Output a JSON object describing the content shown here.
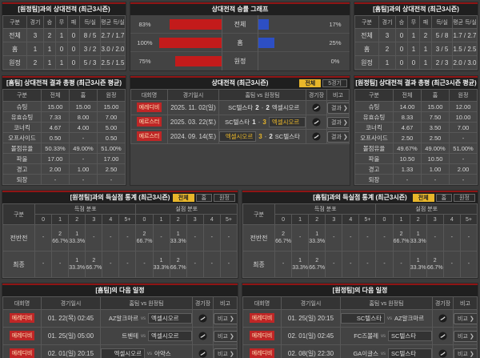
{
  "colors": {
    "red_bar": "#c31b1b",
    "blue_bar": "#2d4fc4",
    "accent_yellow": "#e8b62a",
    "badge_red": "#bf2626",
    "header_line_red": "#8f1515"
  },
  "h2h_vs_away": {
    "title": "[원정팀]과의 상대전적 (최근3시즌)",
    "cols": [
      "구분",
      "경기",
      "승",
      "무",
      "패",
      "득/실",
      "평균 득/실"
    ],
    "rows": [
      [
        "전체",
        "3",
        "2",
        "1",
        "0",
        "8 / 5",
        "2.7 / 1.7"
      ],
      [
        "홈",
        "1",
        "1",
        "0",
        "0",
        "3 / 2",
        "3.0 / 2.0"
      ],
      [
        "원정",
        "2",
        "1",
        "1",
        "0",
        "5 / 3",
        "2.5 / 1.5"
      ]
    ]
  },
  "h2h_vs_home": {
    "title": "[홈팀]과의 상대전적 (최근3시즌)",
    "cols": [
      "구분",
      "경기",
      "승",
      "무",
      "패",
      "득/실",
      "평균 득/실"
    ],
    "rows": [
      [
        "전체",
        "3",
        "0",
        "1",
        "2",
        "5 / 8",
        "1.7 / 2.7"
      ],
      [
        "홈",
        "2",
        "0",
        "1",
        "1",
        "3 / 5",
        "1.5 / 2.5"
      ],
      [
        "원정",
        "1",
        "0",
        "0",
        "1",
        "2 / 3",
        "2.0 / 3.0"
      ]
    ]
  },
  "chart_data": {
    "type": "bar",
    "title": "상대전적 승률 그래프",
    "categories": [
      "전체",
      "홈",
      "원정"
    ],
    "series": [
      {
        "name": "홈팀 승률(적색)",
        "values": [
          83,
          100,
          75
        ]
      },
      {
        "name": "원정팀 승률(청색)",
        "values": [
          17,
          25,
          0
        ]
      }
    ],
    "unit": "%",
    "xlim": [
      0,
      100
    ],
    "legend_position": "none",
    "grid": false
  },
  "winrate": {
    "title": "상대전적 승률 그래프",
    "rows": [
      {
        "lp": "83%",
        "label": "전체",
        "rp": "17%",
        "lv": 83,
        "rv": 17
      },
      {
        "lp": "100%",
        "label": "홈",
        "rp": "25%",
        "lv": 100,
        "rv": 25
      },
      {
        "lp": "75%",
        "label": "원정",
        "rp": "0%",
        "lv": 75,
        "rv": 0
      }
    ]
  },
  "summary_home": {
    "title": "[홈팀] 상대전적 결과 총평 (최근3시즌 평균)",
    "cols": [
      "구분",
      "전체",
      "홈",
      "원정"
    ],
    "rows": [
      [
        "슈팅",
        "15.00",
        "15.00",
        "15.00"
      ],
      [
        "유효슈팅",
        "7.33",
        "8.00",
        "7.00"
      ],
      [
        "코너킥",
        "4.67",
        "4.00",
        "5.00"
      ],
      [
        "오프사이드",
        "0.50",
        "-",
        "0.50"
      ],
      [
        "볼점유율",
        "50.33%",
        "49.00%",
        "51.00%"
      ],
      [
        "파울",
        "17.00",
        "-",
        "17.00"
      ],
      [
        "경고",
        "2.00",
        "1.00",
        "2.50"
      ],
      [
        "퇴장",
        "-",
        "-",
        "-"
      ]
    ]
  },
  "summary_away": {
    "title": "[원정팀] 상대전적 결과 총평 (최근3시즌 평균)",
    "cols": [
      "구분",
      "전체",
      "홈",
      "원정"
    ],
    "rows": [
      [
        "슈팅",
        "14.00",
        "15.00",
        "12.00"
      ],
      [
        "유효슈팅",
        "8.33",
        "7.50",
        "10.00"
      ],
      [
        "코너킥",
        "4.67",
        "3.50",
        "7.00"
      ],
      [
        "오프사이드",
        "2.50",
        "2.50",
        "-"
      ],
      [
        "볼점유율",
        "49.67%",
        "49.00%",
        "51.00%"
      ],
      [
        "파울",
        "10.50",
        "10.50",
        "-"
      ],
      [
        "경고",
        "1.33",
        "1.00",
        "2.00"
      ],
      [
        "퇴장",
        "-",
        "-",
        "-"
      ]
    ]
  },
  "matches": {
    "title": "상대전적 (최근3시즌)",
    "tabs": [
      "전체",
      "5경기"
    ],
    "sep": "-",
    "cols": [
      "대회명",
      "경기일시",
      "홈팀 vs 원정팀",
      "경기장",
      "비고"
    ],
    "rows": [
      {
        "league": "에레디비",
        "dt": "2025. 11. 02(일)",
        "home": "SC텔스타",
        "hs": "2",
        "as": "2",
        "away": "엑셀시오르",
        "note": "결과 ❯"
      },
      {
        "league": "에르스터",
        "dt": "2025. 03. 22(토)",
        "home": "SC텔스타",
        "hs": "1",
        "as": "3",
        "away": "엑셀시오르",
        "note": "결과 ❯"
      },
      {
        "league": "에르스터",
        "dt": "2024. 09. 14(토)",
        "home": "엑셀시오르",
        "hs": "3",
        "as": "2",
        "away": "SC텔스타",
        "note": "결과 ❯"
      }
    ]
  },
  "dist_vs_away": {
    "title": "[원정팀]과의 득실점 통계 (최근3시즌)",
    "tabs": [
      "전체",
      "홈",
      "원정"
    ],
    "col_label": "구분",
    "group1": "득점 분포",
    "group2": "실점 분포",
    "nums": [
      "0",
      "1",
      "2",
      "3",
      "4",
      "5+"
    ],
    "rows": [
      {
        "label": "전반전",
        "scored": [
          "-",
          "2\n66.7%",
          "1\n33.3%",
          "-",
          "-",
          "-"
        ],
        "conceded": [
          "2\n66.7%",
          "-",
          "1\n33.3%",
          "-",
          "-",
          "-"
        ]
      },
      {
        "label": "최종",
        "scored": [
          "-",
          "-",
          "1\n33.3%",
          "2\n66.7%",
          "-",
          "-"
        ],
        "conceded": [
          "-",
          "1\n33.3%",
          "2\n66.7%",
          "-",
          "-",
          "-"
        ]
      }
    ]
  },
  "dist_vs_home": {
    "title": "[홈팀]과의 득실점 통계 (최근3시즌)",
    "tabs": [
      "전체",
      "홈",
      "원정"
    ],
    "col_label": "구분",
    "group1": "득점 분포",
    "group2": "실점 분포",
    "nums": [
      "0",
      "1",
      "2",
      "3",
      "4",
      "5+"
    ],
    "rows": [
      {
        "label": "전반전",
        "scored": [
          "2\n66.7%",
          "-",
          "1\n33.3%",
          "-",
          "-",
          "-"
        ],
        "conceded": [
          "-",
          "2\n66.7%",
          "1\n33.3%",
          "-",
          "-",
          "-"
        ]
      },
      {
        "label": "최종",
        "scored": [
          "-",
          "1\n33.3%",
          "2\n66.7%",
          "-",
          "-",
          "-"
        ],
        "conceded": [
          "-",
          "-",
          "1\n33.3%",
          "2\n66.7%",
          "-",
          "-"
        ]
      }
    ]
  },
  "sched_home": {
    "title": "[홈팀]의 다음 일정",
    "cols": [
      "대회명",
      "경기일시",
      "홈팀 vs 원정팀",
      "경기장",
      "비고"
    ],
    "vs_label": "vs",
    "rows": [
      {
        "league": "에레디비",
        "dt": "01. 22(목) 02:45",
        "home": "AZ알크마르",
        "away": "엑셀시오르",
        "note": "비교 ❯"
      },
      {
        "league": "에레디비",
        "dt": "01. 25(일) 05:00",
        "home": "트벤테",
        "away": "엑셀시오르",
        "note": "비교 ❯"
      },
      {
        "league": "에레디비",
        "dt": "02. 01(일) 20:15",
        "home": "엑셀시오르",
        "away": "아약스",
        "note": "비교 ❯"
      }
    ]
  },
  "sched_away": {
    "title": "[원정팀]의 다음 일정",
    "cols": [
      "대회명",
      "경기일시",
      "홈팀 vs 원정팀",
      "경기장",
      "비고"
    ],
    "vs_label": "vs",
    "rows": [
      {
        "league": "에레디비",
        "dt": "01. 25(일) 20:15",
        "home": "SC텔스타",
        "away": "AZ알크마르",
        "note": "비교 ❯"
      },
      {
        "league": "에레디비",
        "dt": "02. 01(일) 02:45",
        "home": "FC즈볼레",
        "away": "SC텔스타",
        "note": "비교 ❯"
      },
      {
        "league": "에레디비",
        "dt": "02. 08(일) 22:30",
        "home": "GA이글스",
        "away": "SC텔스타",
        "note": "비교 ❯"
      }
    ]
  }
}
